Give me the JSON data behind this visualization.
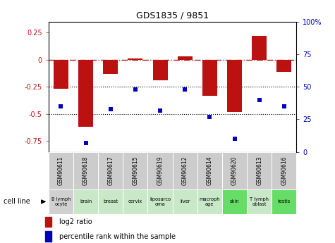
{
  "title": "GDS1835 / 9851",
  "samples": [
    "GSM90611",
    "GSM90618",
    "GSM90617",
    "GSM90615",
    "GSM90619",
    "GSM90612",
    "GSM90614",
    "GSM90620",
    "GSM90613",
    "GSM90616"
  ],
  "cell_lines": [
    "B lymph\nocyte",
    "brain",
    "breast",
    "cervix",
    "liposarco\noma",
    "liver",
    "macroph\nage",
    "skin",
    "T lymph\noblast",
    "testis"
  ],
  "cell_line_colors": [
    "#d0d0d0",
    "#c8e8c8",
    "#c8e8c8",
    "#c8e8c8",
    "#c8e8c8",
    "#c8e8c8",
    "#c8e8c8",
    "#66dd66",
    "#c8e8c8",
    "#66dd66"
  ],
  "log2_ratio": [
    -0.27,
    -0.62,
    -0.13,
    0.01,
    -0.19,
    0.03,
    -0.33,
    -0.48,
    0.22,
    -0.11
  ],
  "percentile_rank": [
    35,
    7,
    33,
    48,
    32,
    48,
    27,
    10,
    40,
    35
  ],
  "left_ylim": [
    -0.85,
    0.35
  ],
  "right_ylim": [
    0,
    100
  ],
  "right_yticks": [
    0,
    25,
    50,
    75,
    100
  ],
  "right_yticklabels": [
    "0",
    "25",
    "50",
    "75",
    "100%"
  ],
  "left_yticks": [
    -0.75,
    -0.5,
    -0.25,
    0.0,
    0.25
  ],
  "left_yticklabels": [
    "-0.75",
    "-0.5",
    "-0.25",
    "0",
    "0.25"
  ],
  "bar_color": "#bb1111",
  "dot_color": "#0000bb",
  "hline_color": "#aa2222",
  "bg_color": "#ffffff",
  "gsm_box_color": "#cccccc",
  "legend_red_label": "log2 ratio",
  "legend_blue_label": "percentile rank within the sample",
  "cell_line_label": "cell line"
}
